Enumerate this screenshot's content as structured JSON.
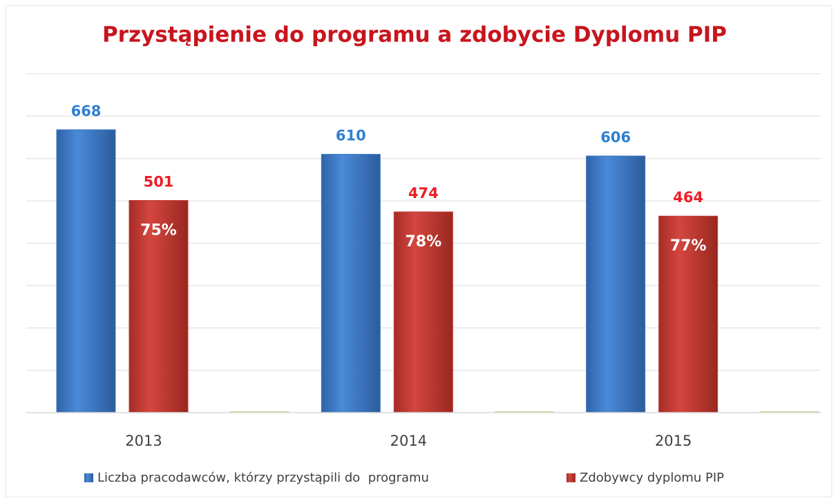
{
  "chart_data": {
    "type": "bar",
    "title": "Przystąpienie do programu a zdobycie Dyplomu PIP",
    "categories": [
      "2013",
      "2014",
      "2015"
    ],
    "series": [
      {
        "name": "Liczba pracodawców, którzy przystąpili do  programu",
        "color": "#3b78c8",
        "label_color": "#2f7fd3",
        "values": [
          668,
          610,
          606
        ]
      },
      {
        "name": "Zdobywcy dyplomu PIP",
        "color": "#c23a35",
        "label_color": "#ee1c25",
        "values": [
          501,
          474,
          464
        ],
        "inner_labels": [
          "75%",
          "78%",
          "77%"
        ]
      }
    ],
    "ylim": [
      0,
      800
    ],
    "yticks": [
      0,
      100,
      200,
      300,
      400,
      500,
      600,
      700,
      800
    ],
    "grid": true
  }
}
